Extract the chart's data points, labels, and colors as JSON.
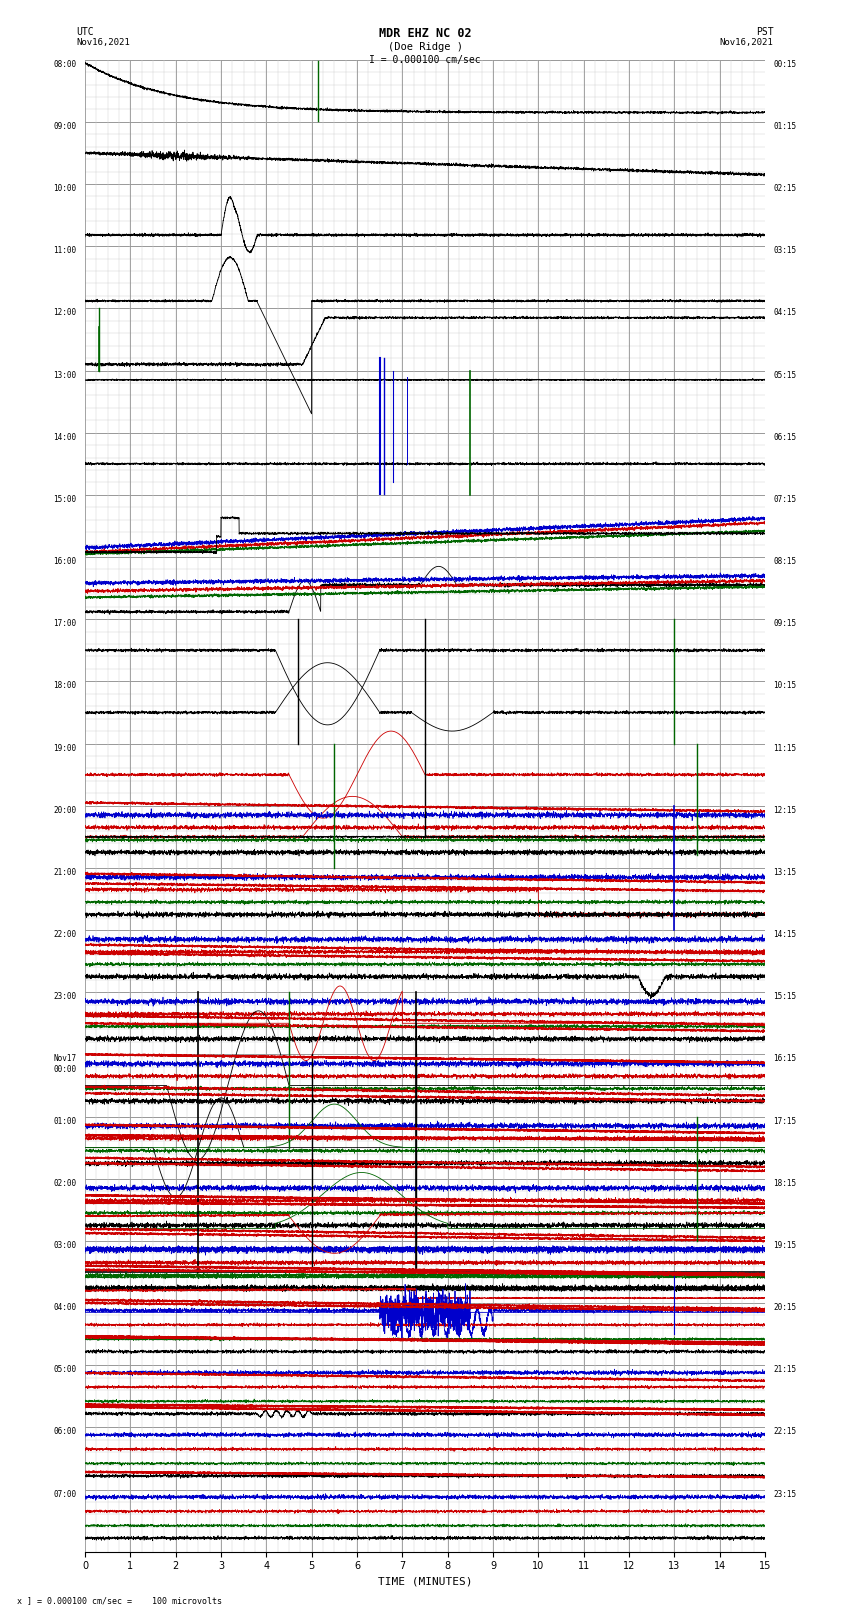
{
  "title_line1": "MDR EHZ NC 02",
  "title_line2": "(Doe Ridge )",
  "title_line3": "I = 0.000100 cm/sec",
  "left_label_top": "UTC",
  "left_label_date": "Nov16,2021",
  "right_label_top": "PST",
  "right_label_date": "Nov16,2021",
  "xlabel": "TIME (MINUTES)",
  "footer": "x ] = 0.000100 cm/sec =    100 microvolts",
  "utc_times": [
    "08:00",
    "09:00",
    "10:00",
    "11:00",
    "12:00",
    "13:00",
    "14:00",
    "15:00",
    "16:00",
    "17:00",
    "18:00",
    "19:00",
    "20:00",
    "21:00",
    "22:00",
    "23:00",
    "Nov17\n00:00",
    "01:00",
    "02:00",
    "03:00",
    "04:00",
    "05:00",
    "06:00",
    "07:00"
  ],
  "pst_times": [
    "00:15",
    "01:15",
    "02:15",
    "03:15",
    "04:15",
    "05:15",
    "06:15",
    "07:15",
    "08:15",
    "09:15",
    "10:15",
    "11:15",
    "12:15",
    "13:15",
    "14:15",
    "15:15",
    "16:15",
    "17:15",
    "18:15",
    "19:15",
    "20:15",
    "21:15",
    "22:15",
    "23:15"
  ],
  "n_rows": 24,
  "x_min": 0,
  "x_max": 15,
  "x_ticks": [
    0,
    1,
    2,
    3,
    4,
    5,
    6,
    7,
    8,
    9,
    10,
    11,
    12,
    13,
    14,
    15
  ],
  "bg_color": "#ffffff",
  "grid_major_color": "#888888",
  "grid_minor_color": "#cccccc",
  "trace_colors": {
    "black": "#000000",
    "blue": "#0000cc",
    "red": "#cc0000",
    "green": "#006600"
  }
}
